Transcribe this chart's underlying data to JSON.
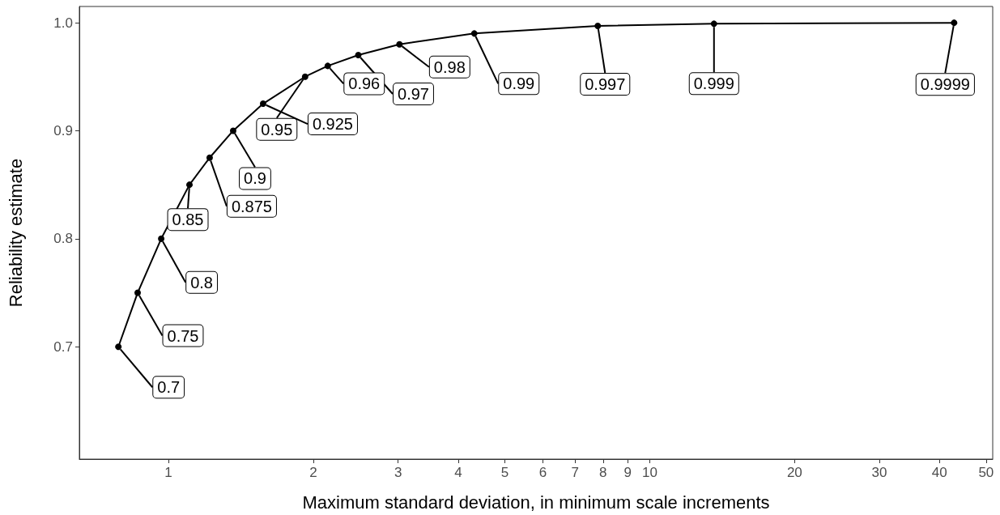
{
  "chart_data": {
    "type": "line",
    "xlabel": "Maximum standard deviation, in minimum scale increments",
    "ylabel": "Reliability estimate",
    "x": [
      0.787,
      0.863,
      0.966,
      1.106,
      1.218,
      1.363,
      1.573,
      1.923,
      2.143,
      2.48,
      3.02,
      4.32,
      7.8,
      13.6,
      42.9
    ],
    "series": [
      {
        "color": "#000000",
        "values": [
          0.7,
          0.75,
          0.8,
          0.85,
          0.875,
          0.9,
          0.925,
          0.95,
          0.96,
          0.97,
          0.98,
          0.99,
          0.997,
          0.999,
          0.9999
        ]
      }
    ],
    "data_labels": true,
    "log": "x",
    "xlim": [
      0.653,
      51.6
    ],
    "xticks": [
      1,
      2,
      3,
      4,
      5,
      6,
      7,
      8,
      9,
      10,
      20,
      30,
      40,
      50
    ],
    "ylim": [
      0.596,
      1.015
    ],
    "yticks": [
      0.7,
      0.8,
      0.9,
      {
        "value": 1,
        "label": "1.0"
      }
    ],
    "grid": false,
    "marker": "circle",
    "line_style": "solid"
  }
}
